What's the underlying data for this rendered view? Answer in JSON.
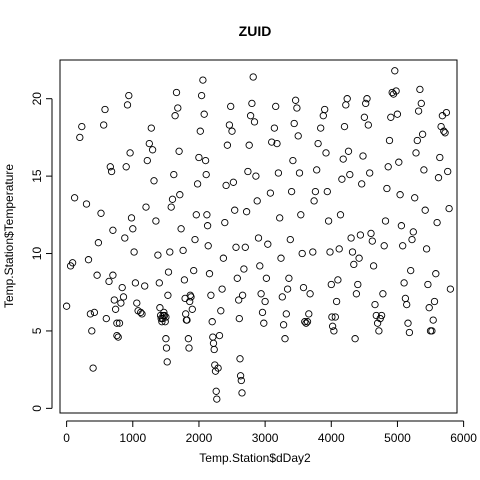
{
  "chart_data": {
    "type": "scatter",
    "title": "ZUID",
    "xlabel": "Temp.Station$dDay2",
    "ylabel": "Temp.Station$Temperature",
    "xlim": [
      -100,
      5900
    ],
    "ylim": [
      -0.3,
      22.5
    ],
    "xticks": [
      0,
      1000,
      2000,
      3000,
      4000,
      5000,
      6000
    ],
    "yticks": [
      0,
      5,
      10,
      15,
      20
    ],
    "grid": false,
    "marker": "open-circle",
    "points": [
      [
        0,
        6.6
      ],
      [
        60,
        9.2
      ],
      [
        90,
        9.4
      ],
      [
        120,
        13.6
      ],
      [
        200,
        17.5
      ],
      [
        230,
        18.2
      ],
      [
        300,
        13.2
      ],
      [
        330,
        9.6
      ],
      [
        360,
        6.1
      ],
      [
        380,
        5.0
      ],
      [
        400,
        2.6
      ],
      [
        420,
        6.2
      ],
      [
        460,
        8.6
      ],
      [
        480,
        10.7
      ],
      [
        520,
        12.6
      ],
      [
        560,
        18.3
      ],
      [
        580,
        19.3
      ],
      [
        600,
        5.8
      ],
      [
        640,
        8.2
      ],
      [
        660,
        15.6
      ],
      [
        680,
        15.3
      ],
      [
        700,
        11.5
      ],
      [
        700,
        8.6
      ],
      [
        720,
        7.0
      ],
      [
        740,
        6.4
      ],
      [
        760,
        5.5
      ],
      [
        760,
        4.7
      ],
      [
        780,
        4.6
      ],
      [
        800,
        5.5
      ],
      [
        820,
        6.8
      ],
      [
        840,
        7.8
      ],
      [
        860,
        7.2
      ],
      [
        880,
        11.0
      ],
      [
        900,
        15.6
      ],
      [
        920,
        19.6
      ],
      [
        940,
        20.2
      ],
      [
        960,
        16.5
      ],
      [
        980,
        12.3
      ],
      [
        1000,
        11.6
      ],
      [
        1020,
        10.1
      ],
      [
        1040,
        8.1
      ],
      [
        1060,
        6.8
      ],
      [
        1080,
        6.3
      ],
      [
        1120,
        6.2
      ],
      [
        1140,
        6.1
      ],
      [
        1180,
        7.9
      ],
      [
        1200,
        13.0
      ],
      [
        1220,
        16.0
      ],
      [
        1250,
        17.1
      ],
      [
        1280,
        18.1
      ],
      [
        1300,
        16.7
      ],
      [
        1320,
        14.7
      ],
      [
        1350,
        12.1
      ],
      [
        1380,
        9.9
      ],
      [
        1400,
        8.1
      ],
      [
        1410,
        6.5
      ],
      [
        1420,
        6.0
      ],
      [
        1430,
        5.8
      ],
      [
        1440,
        5.6
      ],
      [
        1450,
        5.8
      ],
      [
        1460,
        6.0
      ],
      [
        1470,
        6.2
      ],
      [
        1480,
        6.0
      ],
      [
        1490,
        5.6
      ],
      [
        1500,
        5.9
      ],
      [
        1500,
        4.5
      ],
      [
        1510,
        3.9
      ],
      [
        1520,
        3.0
      ],
      [
        1530,
        7.3
      ],
      [
        1540,
        8.8
      ],
      [
        1560,
        10.1
      ],
      [
        1580,
        13.0
      ],
      [
        1600,
        13.5
      ],
      [
        1620,
        15.1
      ],
      [
        1640,
        18.9
      ],
      [
        1660,
        20.4
      ],
      [
        1680,
        19.4
      ],
      [
        1700,
        16.6
      ],
      [
        1710,
        13.8
      ],
      [
        1730,
        11.6
      ],
      [
        1760,
        10.2
      ],
      [
        1780,
        8.3
      ],
      [
        1790,
        7.1
      ],
      [
        1800,
        6.1
      ],
      [
        1810,
        5.7
      ],
      [
        1820,
        5.7
      ],
      [
        1840,
        4.5
      ],
      [
        1850,
        3.9
      ],
      [
        1860,
        6.9
      ],
      [
        1870,
        7.3
      ],
      [
        1880,
        7.2
      ],
      [
        1900,
        6.4
      ],
      [
        1920,
        8.9
      ],
      [
        1940,
        10.9
      ],
      [
        1960,
        12.5
      ],
      [
        1980,
        14.5
      ],
      [
        2000,
        16.2
      ],
      [
        2020,
        17.9
      ],
      [
        2040,
        20.2
      ],
      [
        2060,
        21.2
      ],
      [
        2080,
        19.0
      ],
      [
        2100,
        16.0
      ],
      [
        2110,
        15.1
      ],
      [
        2120,
        12.5
      ],
      [
        2130,
        11.8
      ],
      [
        2140,
        10.5
      ],
      [
        2160,
        8.7
      ],
      [
        2180,
        7.3
      ],
      [
        2200,
        5.6
      ],
      [
        2210,
        4.6
      ],
      [
        2220,
        4.2
      ],
      [
        2230,
        3.8
      ],
      [
        2240,
        2.8
      ],
      [
        2250,
        2.4
      ],
      [
        2260,
        1.1
      ],
      [
        2270,
        0.6
      ],
      [
        2290,
        2.6
      ],
      [
        2310,
        4.7
      ],
      [
        2330,
        6.3
      ],
      [
        2350,
        7.7
      ],
      [
        2370,
        9.7
      ],
      [
        2390,
        12.0
      ],
      [
        2410,
        14.4
      ],
      [
        2430,
        17.0
      ],
      [
        2460,
        18.3
      ],
      [
        2480,
        19.5
      ],
      [
        2500,
        17.9
      ],
      [
        2520,
        14.6
      ],
      [
        2540,
        12.8
      ],
      [
        2560,
        10.4
      ],
      [
        2580,
        8.4
      ],
      [
        2600,
        7.0
      ],
      [
        2610,
        5.8
      ],
      [
        2620,
        3.2
      ],
      [
        2630,
        2.1
      ],
      [
        2640,
        1.8
      ],
      [
        2650,
        1.0
      ],
      [
        2660,
        7.3
      ],
      [
        2680,
        9.0
      ],
      [
        2700,
        10.4
      ],
      [
        2720,
        12.7
      ],
      [
        2740,
        15.3
      ],
      [
        2760,
        17.0
      ],
      [
        2780,
        18.9
      ],
      [
        2800,
        19.7
      ],
      [
        2820,
        21.4
      ],
      [
        2840,
        18.5
      ],
      [
        2860,
        15.0
      ],
      [
        2880,
        13.4
      ],
      [
        2900,
        11.0
      ],
      [
        2920,
        9.2
      ],
      [
        2940,
        7.4
      ],
      [
        2960,
        6.2
      ],
      [
        2980,
        5.5
      ],
      [
        3000,
        6.9
      ],
      [
        3020,
        8.4
      ],
      [
        3040,
        10.6
      ],
      [
        3080,
        13.9
      ],
      [
        3100,
        17.2
      ],
      [
        3140,
        18.1
      ],
      [
        3160,
        19.5
      ],
      [
        3180,
        17.1
      ],
      [
        3200,
        15.2
      ],
      [
        3220,
        12.3
      ],
      [
        3240,
        9.7
      ],
      [
        3260,
        7.2
      ],
      [
        3280,
        5.4
      ],
      [
        3300,
        4.5
      ],
      [
        3320,
        6.1
      ],
      [
        3340,
        7.7
      ],
      [
        3360,
        8.4
      ],
      [
        3380,
        10.9
      ],
      [
        3400,
        14.0
      ],
      [
        3420,
        16.0
      ],
      [
        3440,
        18.4
      ],
      [
        3460,
        19.9
      ],
      [
        3480,
        19.4
      ],
      [
        3500,
        17.6
      ],
      [
        3520,
        15.2
      ],
      [
        3540,
        12.5
      ],
      [
        3560,
        10.0
      ],
      [
        3580,
        7.8
      ],
      [
        3600,
        5.6
      ],
      [
        3620,
        5.5
      ],
      [
        3640,
        5.6
      ],
      [
        3660,
        6.1
      ],
      [
        3680,
        7.4
      ],
      [
        3720,
        10.1
      ],
      [
        3740,
        13.4
      ],
      [
        3760,
        14.0
      ],
      [
        3780,
        15.4
      ],
      [
        3800,
        17.1
      ],
      [
        3840,
        18.1
      ],
      [
        3880,
        18.9
      ],
      [
        3900,
        19.3
      ],
      [
        3920,
        16.5
      ],
      [
        3940,
        14.0
      ],
      [
        3960,
        12.1
      ],
      [
        3980,
        10.1
      ],
      [
        4000,
        8.0
      ],
      [
        4010,
        5.9
      ],
      [
        4020,
        5.3
      ],
      [
        4040,
        5.0
      ],
      [
        4060,
        5.9
      ],
      [
        4080,
        6.9
      ],
      [
        4100,
        8.3
      ],
      [
        4120,
        10.3
      ],
      [
        4140,
        12.5
      ],
      [
        4160,
        14.8
      ],
      [
        4180,
        16.1
      ],
      [
        4200,
        18.2
      ],
      [
        4220,
        19.6
      ],
      [
        4240,
        20.0
      ],
      [
        4260,
        16.6
      ],
      [
        4280,
        15.1
      ],
      [
        4300,
        11.0
      ],
      [
        4320,
        10.1
      ],
      [
        4340,
        9.3
      ],
      [
        4360,
        4.5
      ],
      [
        4380,
        7.4
      ],
      [
        4400,
        8.0
      ],
      [
        4420,
        9.7
      ],
      [
        4440,
        11.2
      ],
      [
        4460,
        14.5
      ],
      [
        4480,
        16.3
      ],
      [
        4500,
        18.8
      ],
      [
        4520,
        19.7
      ],
      [
        4540,
        20.0
      ],
      [
        4560,
        18.3
      ],
      [
        4580,
        15.2
      ],
      [
        4600,
        11.3
      ],
      [
        4620,
        10.8
      ],
      [
        4640,
        9.2
      ],
      [
        4660,
        6.7
      ],
      [
        4680,
        6.0
      ],
      [
        4700,
        5.5
      ],
      [
        4720,
        5.0
      ],
      [
        4740,
        5.8
      ],
      [
        4760,
        6.0
      ],
      [
        4780,
        7.4
      ],
      [
        4800,
        10.5
      ],
      [
        4820,
        12.1
      ],
      [
        4840,
        14.2
      ],
      [
        4860,
        15.6
      ],
      [
        4880,
        17.3
      ],
      [
        4900,
        18.8
      ],
      [
        4920,
        20.4
      ],
      [
        4940,
        20.3
      ],
      [
        4960,
        21.8
      ],
      [
        4980,
        20.5
      ],
      [
        5000,
        19.0
      ],
      [
        5020,
        15.9
      ],
      [
        5040,
        13.8
      ],
      [
        5060,
        11.8
      ],
      [
        5080,
        10.5
      ],
      [
        5100,
        8.1
      ],
      [
        5120,
        7.1
      ],
      [
        5140,
        6.7
      ],
      [
        5160,
        5.5
      ],
      [
        5180,
        4.9
      ],
      [
        5200,
        8.9
      ],
      [
        5220,
        10.9
      ],
      [
        5240,
        11.4
      ],
      [
        5260,
        13.6
      ],
      [
        5280,
        16.5
      ],
      [
        5300,
        17.3
      ],
      [
        5320,
        19.2
      ],
      [
        5340,
        20.6
      ],
      [
        5360,
        19.7
      ],
      [
        5380,
        17.7
      ],
      [
        5400,
        15.4
      ],
      [
        5420,
        12.8
      ],
      [
        5440,
        10.3
      ],
      [
        5460,
        8.0
      ],
      [
        5480,
        6.5
      ],
      [
        5500,
        5.0
      ],
      [
        5520,
        5.0
      ],
      [
        5540,
        5.7
      ],
      [
        5560,
        6.9
      ],
      [
        5580,
        8.7
      ],
      [
        5600,
        12.0
      ],
      [
        5620,
        14.9
      ],
      [
        5640,
        16.2
      ],
      [
        5660,
        18.2
      ],
      [
        5680,
        18.9
      ],
      [
        5700,
        17.9
      ],
      [
        5720,
        17.8
      ],
      [
        5740,
        19.1
      ],
      [
        5760,
        15.3
      ],
      [
        5780,
        12.9
      ],
      [
        5800,
        7.7
      ]
    ]
  }
}
